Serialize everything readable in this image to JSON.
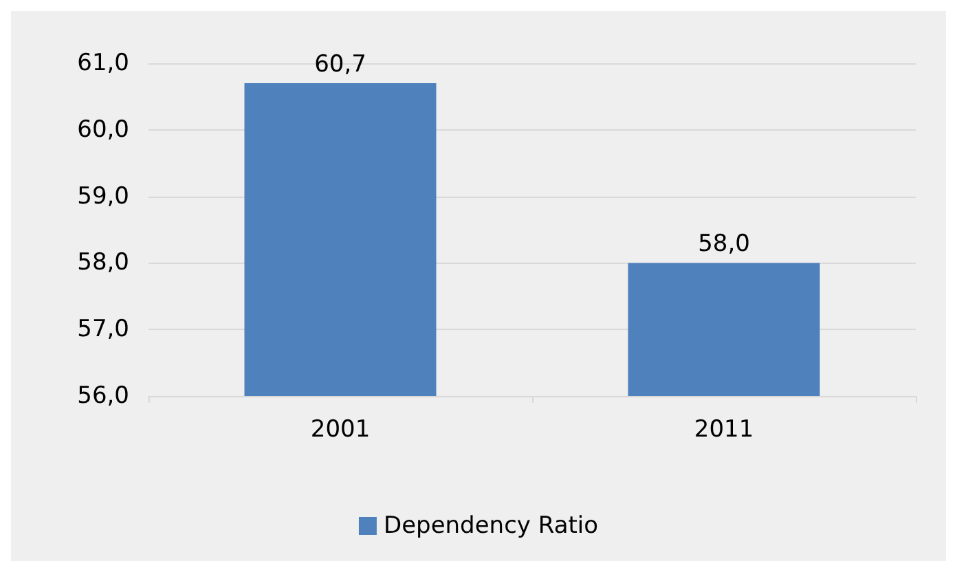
{
  "chart_data": {
    "type": "bar",
    "categories": [
      "2001",
      "2011"
    ],
    "series": [
      {
        "name": "Dependency Ratio",
        "color": "#4f81bd",
        "values": [
          60.7,
          58.0
        ],
        "value_labels": [
          "60,7",
          "58,0"
        ]
      }
    ],
    "ylim": [
      56,
      61
    ],
    "yticks": [
      {
        "value": 56,
        "label": "56,0"
      },
      {
        "value": 57,
        "label": "57,0"
      },
      {
        "value": 58,
        "label": "58,0"
      },
      {
        "value": 59,
        "label": "59,0"
      },
      {
        "value": 60,
        "label": "60,0"
      },
      {
        "value": 61,
        "label": "61,0"
      }
    ],
    "grid": "y",
    "legend": "bottom"
  }
}
